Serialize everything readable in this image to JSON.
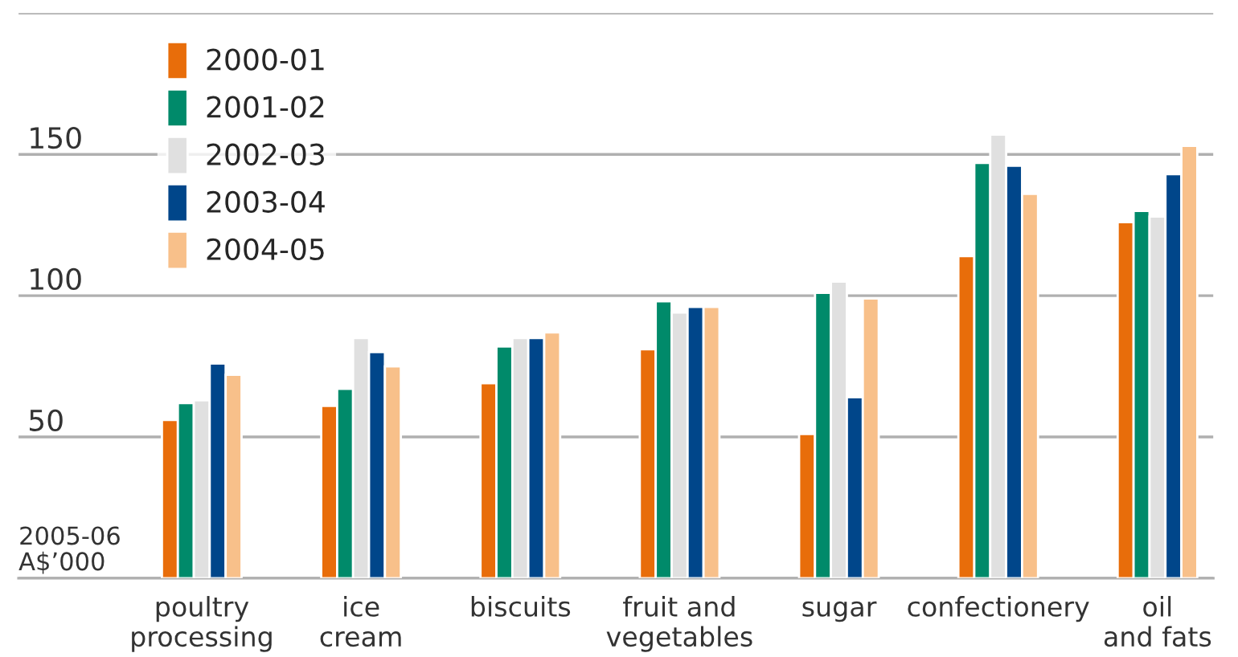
{
  "chart_data": {
    "type": "bar",
    "ylabel": "2005-06\nA$’000",
    "categories": [
      "poultry\nprocessing",
      "ice\ncream",
      "biscuits",
      "fruit and\nvegetables",
      "sugar",
      "confectionery",
      "oil\nand fats"
    ],
    "series": [
      {
        "name": "2000-01",
        "color": "#e86d0a",
        "values": [
          56,
          61,
          69,
          81,
          51,
          114,
          126
        ]
      },
      {
        "name": "2001-02",
        "color": "#008a6a",
        "values": [
          62,
          67,
          82,
          98,
          101,
          147,
          130
        ]
      },
      {
        "name": "2002-03",
        "color": "#e0e0e0",
        "values": [
          63,
          85,
          85,
          94,
          105,
          157,
          128
        ]
      },
      {
        "name": "2003-04",
        "color": "#00468a",
        "values": [
          76,
          80,
          85,
          96,
          64,
          146,
          143
        ]
      },
      {
        "name": "2004-05",
        "color": "#f8c08a",
        "values": [
          72,
          75,
          87,
          96,
          99,
          136,
          153
        ]
      }
    ],
    "ylim": [
      0,
      200
    ],
    "yticks": [
      {
        "value": 0,
        "label": null
      },
      50,
      100,
      150,
      {
        "value": 200,
        "label": null
      }
    ],
    "grid": "y",
    "legend": "top left"
  }
}
